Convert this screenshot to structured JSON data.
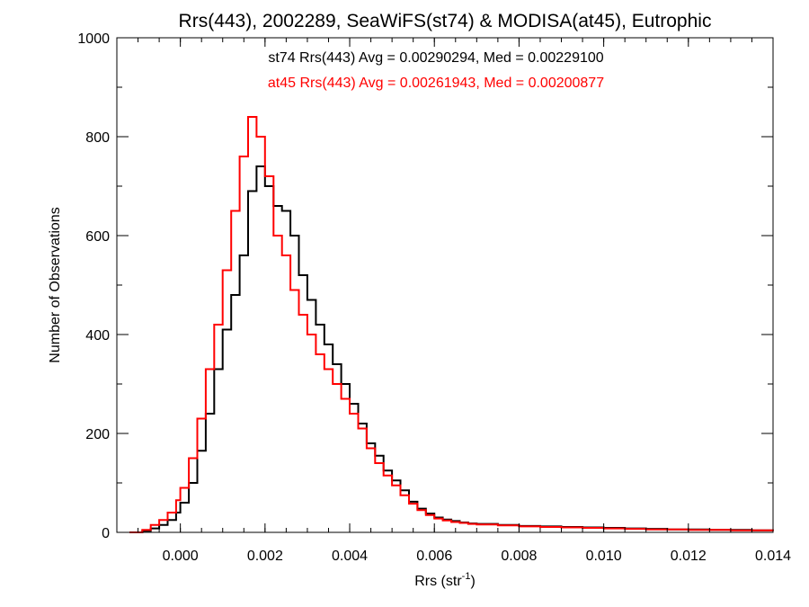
{
  "chart_data": {
    "type": "line",
    "title": "Rrs(443), 2002289, SeaWiFS(st74) & MODISA(at45), Eutrophic",
    "xlabel": "Rrs (str",
    "xlabel_sup": "-1",
    "xlabel_close": ")",
    "ylabel": "Number of Observations",
    "xlim": [
      -0.0015,
      0.014
    ],
    "ylim": [
      0,
      1000
    ],
    "xticks": [
      0.0,
      0.002,
      0.004,
      0.006,
      0.008,
      0.01,
      0.012,
      0.014
    ],
    "xtick_labels": [
      "0.000",
      "0.002",
      "0.004",
      "0.006",
      "0.008",
      "0.010",
      "0.012",
      "0.014"
    ],
    "yticks": [
      0,
      200,
      400,
      600,
      800,
      1000
    ],
    "ytick_labels": [
      "0",
      "200",
      "400",
      "600",
      "800",
      "1000"
    ],
    "grid": false,
    "annotations": [
      {
        "text": "st74 Rrs(443) Avg = 0.00290294, Med = 0.00229100",
        "color": "#000000"
      },
      {
        "text": "at45 Rrs(443) Avg = 0.00261943, Med = 0.00200877",
        "color": "#ff0000"
      }
    ],
    "series": [
      {
        "color": "#000000",
        "x": [
          -0.0012,
          -0.0009,
          -0.0007,
          -0.0005,
          -0.0003,
          -0.0001,
          0.0,
          0.0002,
          0.0004,
          0.0006,
          0.0008,
          0.001,
          0.0012,
          0.0014,
          0.0016,
          0.0018,
          0.002,
          0.0022,
          0.0024,
          0.0026,
          0.0028,
          0.003,
          0.0032,
          0.0034,
          0.0036,
          0.0038,
          0.004,
          0.0042,
          0.0044,
          0.0046,
          0.0048,
          0.005,
          0.0052,
          0.0054,
          0.0056,
          0.0058,
          0.006,
          0.0062,
          0.0064,
          0.0066,
          0.0068,
          0.007,
          0.0075,
          0.008,
          0.0085,
          0.009,
          0.0095,
          0.01,
          0.0105,
          0.011,
          0.0115,
          0.012,
          0.0125,
          0.013,
          0.0135,
          0.014
        ],
        "y": [
          0,
          3,
          8,
          15,
          25,
          40,
          60,
          100,
          165,
          240,
          330,
          410,
          480,
          560,
          690,
          740,
          700,
          660,
          650,
          600,
          520,
          470,
          420,
          380,
          340,
          300,
          260,
          220,
          180,
          155,
          125,
          105,
          85,
          62,
          48,
          38,
          30,
          26,
          23,
          20,
          18,
          17,
          15,
          13,
          12,
          11,
          10,
          9,
          8,
          7,
          6,
          6,
          5,
          5,
          4,
          4
        ]
      },
      {
        "color": "#ff0000",
        "x": [
          -0.0012,
          -0.0009,
          -0.0007,
          -0.0005,
          -0.0003,
          -0.0001,
          0.0,
          0.0002,
          0.0004,
          0.0006,
          0.0008,
          0.001,
          0.0012,
          0.0014,
          0.0016,
          0.0018,
          0.002,
          0.0022,
          0.0024,
          0.0026,
          0.0028,
          0.003,
          0.0032,
          0.0034,
          0.0036,
          0.0038,
          0.004,
          0.0042,
          0.0044,
          0.0046,
          0.0048,
          0.005,
          0.0052,
          0.0054,
          0.0056,
          0.0058,
          0.006,
          0.0062,
          0.0064,
          0.0066,
          0.0068,
          0.007,
          0.0075,
          0.008,
          0.0085,
          0.009,
          0.0095,
          0.01,
          0.0105,
          0.011,
          0.0115,
          0.012,
          0.0125,
          0.013,
          0.0135,
          0.014
        ],
        "y": [
          0,
          5,
          15,
          25,
          40,
          65,
          90,
          150,
          230,
          330,
          420,
          530,
          650,
          760,
          840,
          800,
          720,
          600,
          560,
          490,
          440,
          400,
          360,
          330,
          300,
          270,
          240,
          210,
          170,
          140,
          115,
          95,
          75,
          58,
          45,
          35,
          28,
          24,
          21,
          19,
          17,
          16,
          14,
          12,
          11,
          10,
          9,
          8,
          7,
          6,
          6,
          5,
          5,
          4,
          4,
          3
        ]
      }
    ]
  }
}
